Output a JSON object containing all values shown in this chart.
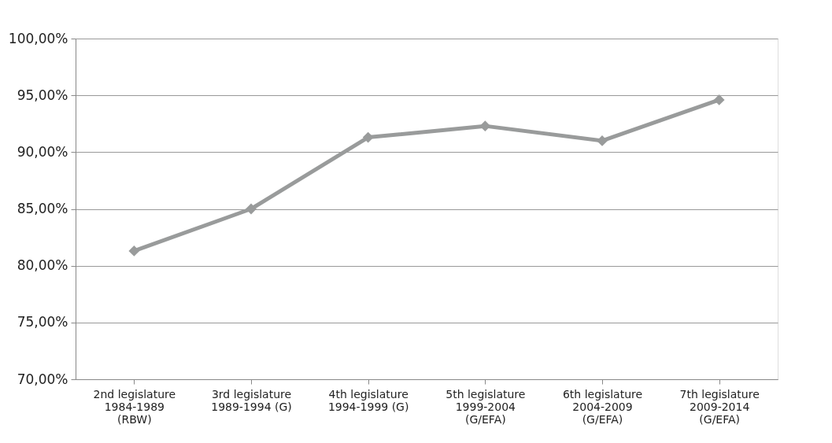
{
  "chart_data": {
    "type": "line",
    "categories": [
      "2nd legislature\n1984-1989\n(RBW)",
      "3rd legislature\n1989-1994 (G)",
      "4th legislature\n1994-1999 (G)",
      "5th legislature\n1999-2004\n(G/EFA)",
      "6th legislature\n2004-2009\n(G/EFA)",
      "7th legislature\n2009-2014\n(G/EFA)"
    ],
    "series": [
      {
        "color": "#999b9b",
        "values": [
          81.3,
          85.0,
          91.3,
          92.3,
          91.0,
          94.6
        ]
      }
    ],
    "ylim": [
      70,
      100
    ],
    "yticks": [
      {
        "value": 70,
        "label": "70,00%"
      },
      {
        "value": 75,
        "label": "75,00%"
      },
      {
        "value": 80,
        "label": "80,00%"
      },
      {
        "value": 85,
        "label": "85,00%"
      },
      {
        "value": 90,
        "label": "90,00%"
      },
      {
        "value": 95,
        "label": "95,00%"
      },
      {
        "value": 100,
        "label": "100,00%"
      }
    ],
    "grid": "y",
    "marker": "diamond",
    "line_style": "solid"
  }
}
